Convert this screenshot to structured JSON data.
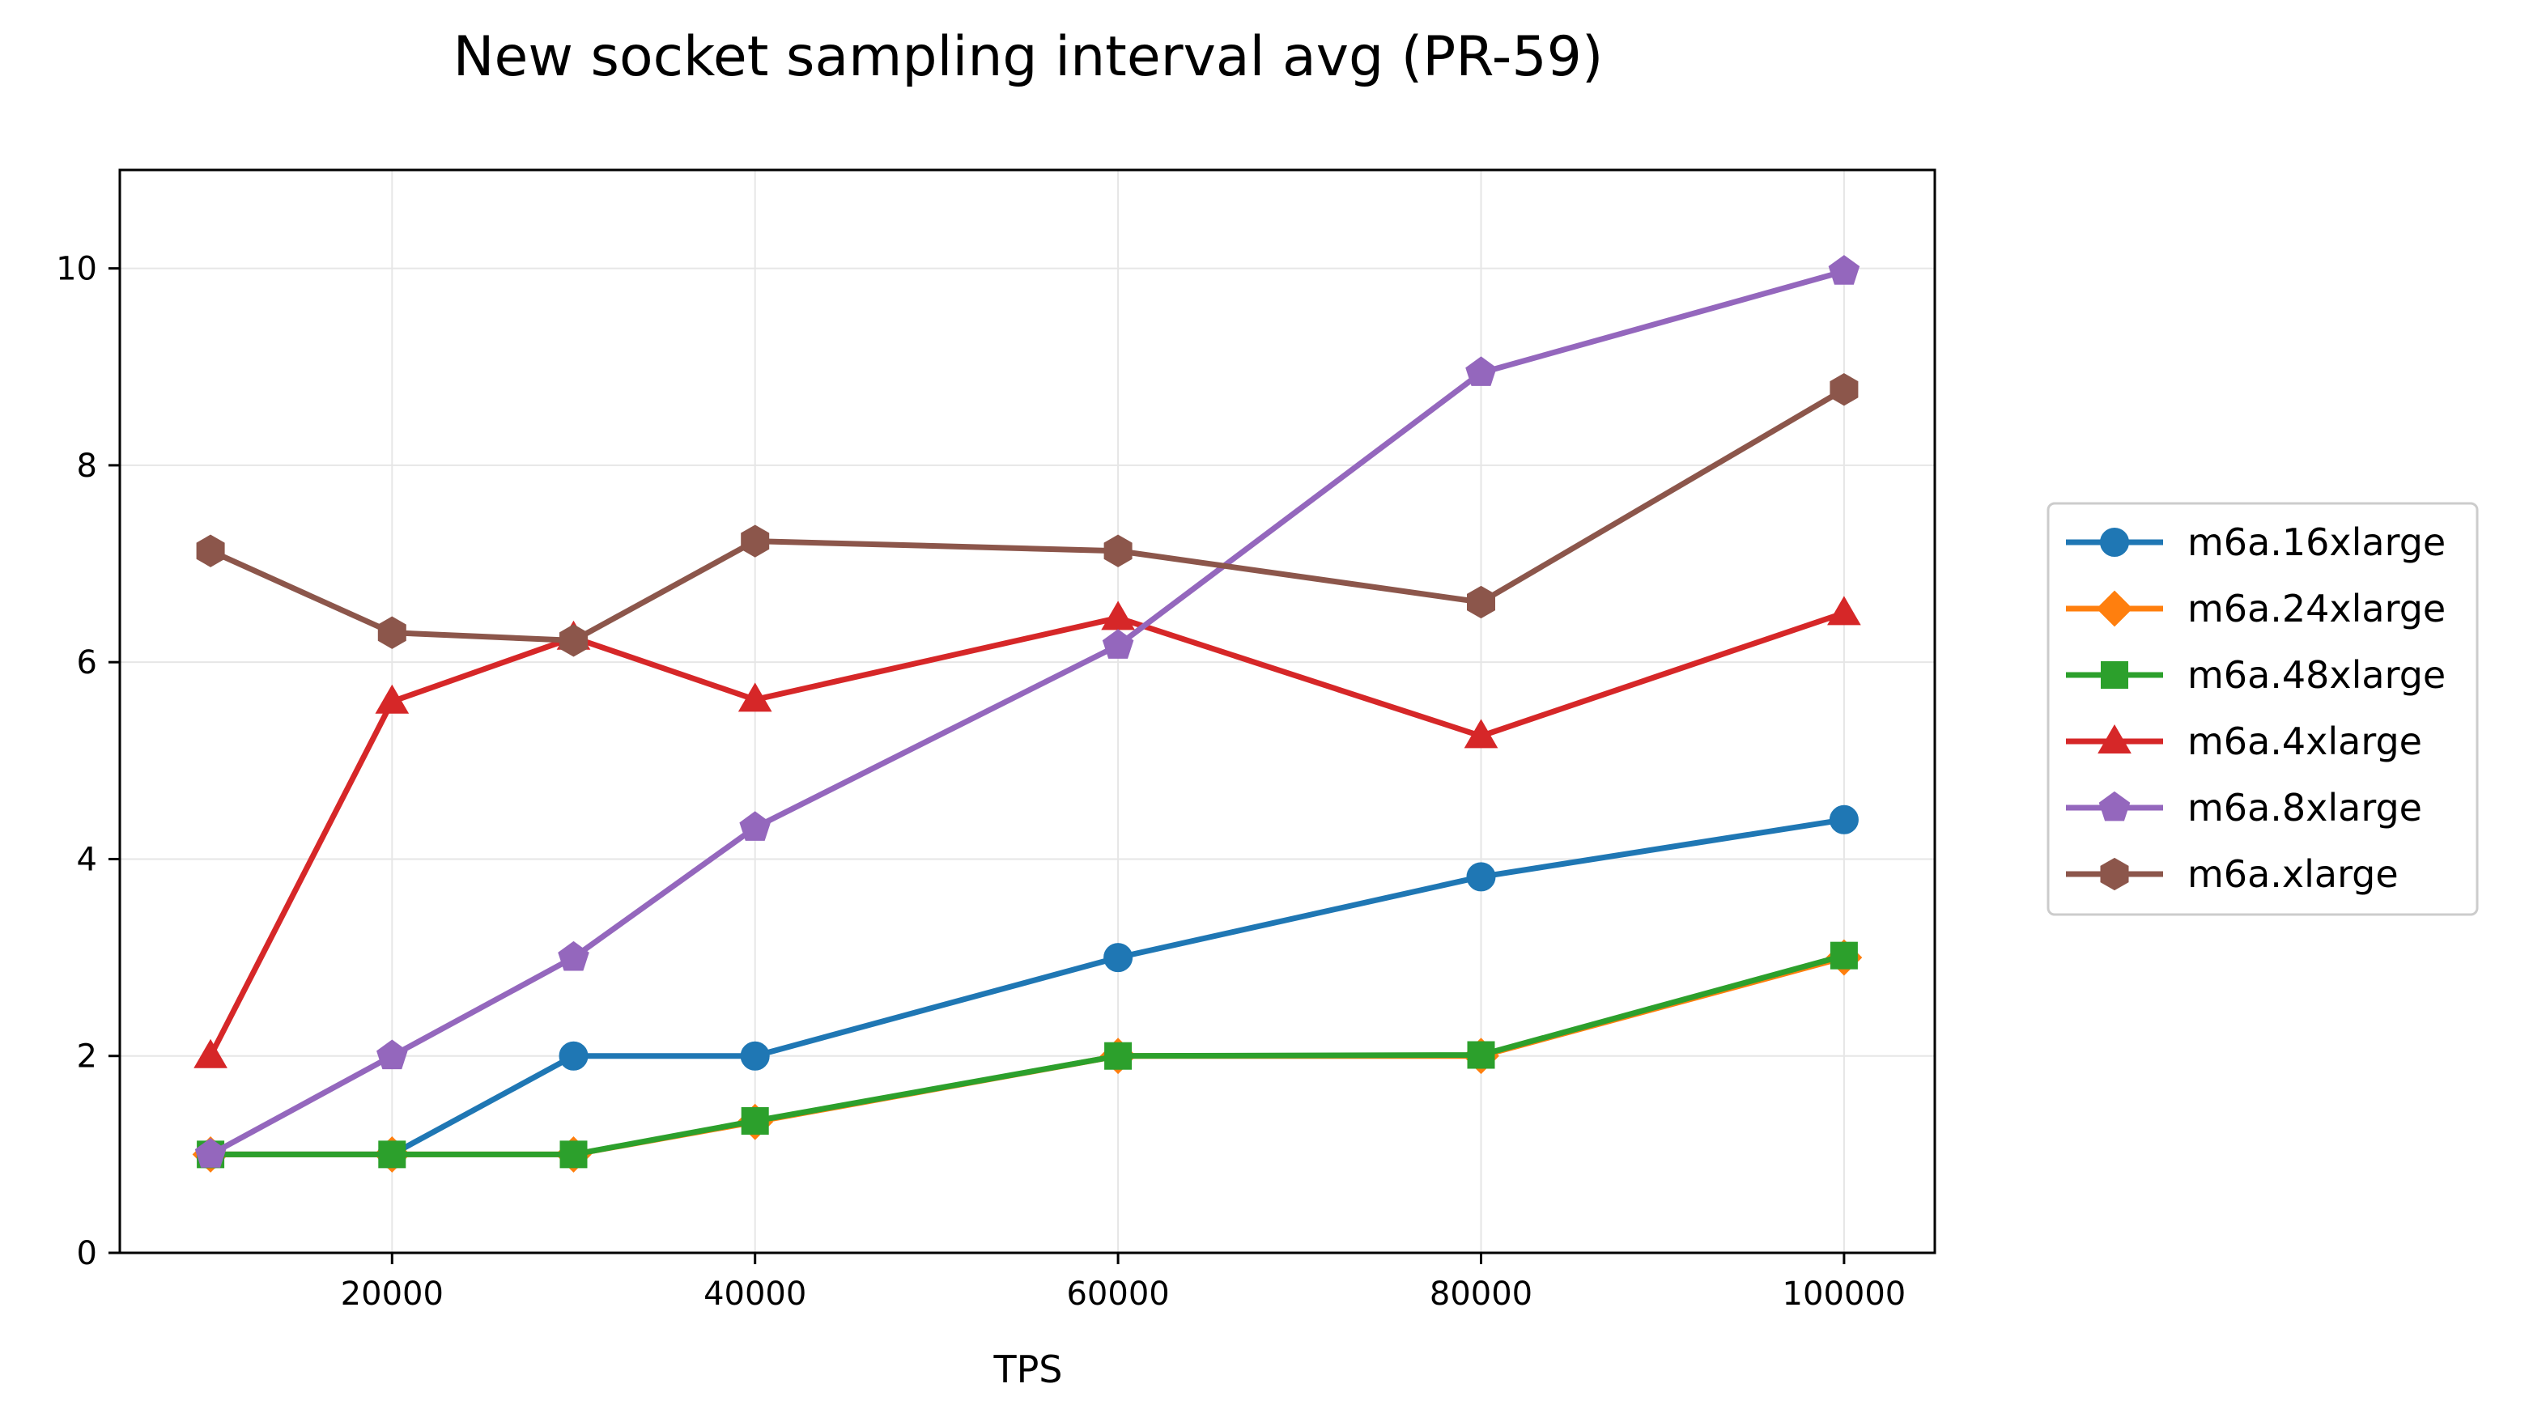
{
  "chart_data": {
    "type": "line",
    "title": "New socket sampling interval avg (PR-59)",
    "xlabel": "TPS",
    "ylabel": "",
    "xlim": [
      5000,
      105000
    ],
    "ylim": [
      0,
      11
    ],
    "xticks": [
      20000,
      40000,
      60000,
      80000,
      100000
    ],
    "yticks": [
      0,
      2,
      4,
      6,
      8,
      10
    ],
    "x_tick_labels": [
      "20000",
      "40000",
      "60000",
      "80000",
      "100000"
    ],
    "y_tick_labels": [
      "0",
      "2",
      "4",
      "6",
      "8",
      "10"
    ],
    "grid": true,
    "legend": "right-outside",
    "x": [
      10000,
      20000,
      30000,
      40000,
      60000,
      80000,
      100000
    ],
    "series": [
      {
        "name": "m6a.16xlarge",
        "color": "#1f77b4",
        "marker": "circle",
        "values": [
          1,
          1,
          2,
          2,
          3,
          3.82,
          4.4
        ]
      },
      {
        "name": "m6a.24xlarge",
        "color": "#ff7f0e",
        "marker": "diamond",
        "values": [
          1,
          1,
          1,
          1.33,
          2,
          2,
          3
        ]
      },
      {
        "name": "m6a.48xlarge",
        "color": "#2ca02c",
        "marker": "square",
        "values": [
          1,
          1,
          1,
          1.34,
          2,
          2.01,
          3.02
        ]
      },
      {
        "name": "m6a.4xlarge",
        "color": "#d62728",
        "marker": "triangle",
        "values": [
          2,
          5.6,
          6.25,
          5.62,
          6.45,
          5.25,
          6.5
        ]
      },
      {
        "name": "m6a.8xlarge",
        "color": "#9467bd",
        "marker": "pentagon",
        "values": [
          1,
          2,
          3,
          4.32,
          6.17,
          8.94,
          9.97
        ]
      },
      {
        "name": "m6a.xlarge",
        "color": "#8c564b",
        "marker": "hexagon",
        "values": [
          7.13,
          6.3,
          6.22,
          7.23,
          7.13,
          6.61,
          8.77
        ]
      }
    ]
  }
}
